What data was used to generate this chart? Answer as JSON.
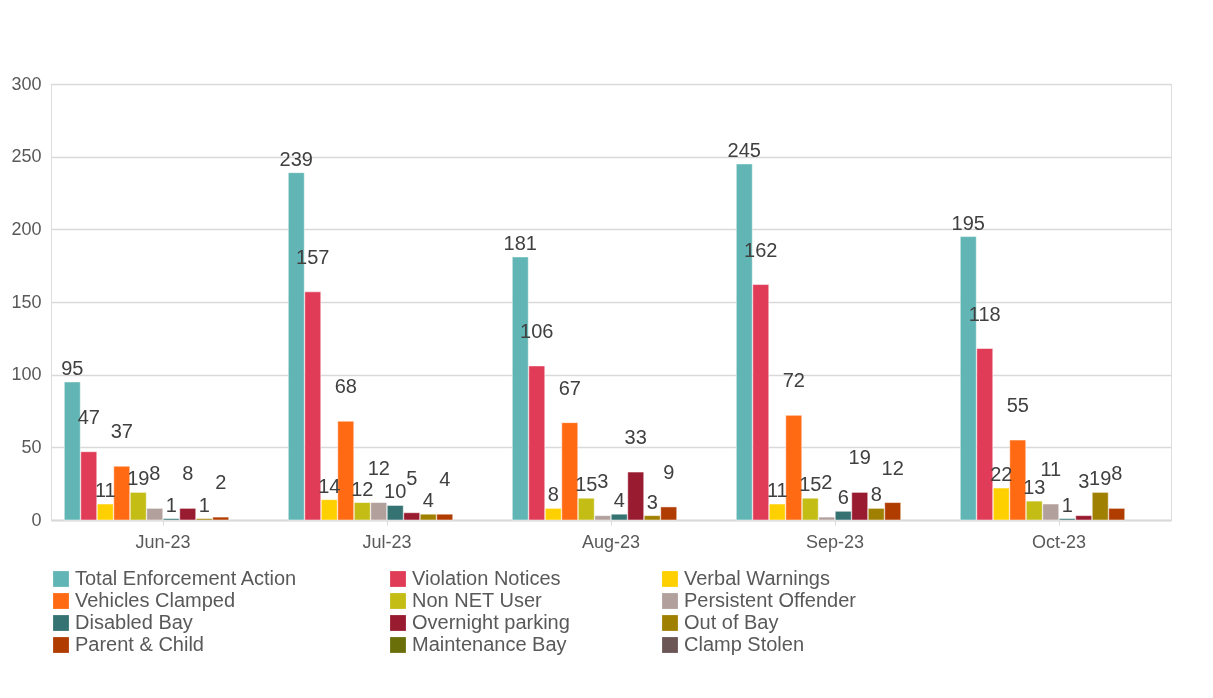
{
  "chart_data": {
    "type": "bar",
    "categories": [
      "Jun-23",
      "Jul-23",
      "Aug-23",
      "Sep-23",
      "Oct-23"
    ],
    "series": [
      {
        "name": "Total Enforcement Action",
        "color": "#62b5b5",
        "values": [
          95,
          239,
          181,
          245,
          195
        ]
      },
      {
        "name": "Violation Notices",
        "color": "#e03c58",
        "values": [
          47,
          157,
          106,
          162,
          118
        ]
      },
      {
        "name": "Verbal Warnings",
        "color": "#ffd000",
        "values": [
          11,
          14,
          8,
          11,
          22
        ]
      },
      {
        "name": "Vehicles Clamped",
        "color": "#ff6a13",
        "values": [
          37,
          68,
          67,
          72,
          55
        ]
      },
      {
        "name": "Non NET User",
        "color": "#c3bd16",
        "values": [
          19,
          12,
          15,
          15,
          13
        ]
      },
      {
        "name": "Persistent Offender",
        "color": "#b1a09c",
        "values": [
          8,
          12,
          3,
          2,
          11
        ]
      },
      {
        "name": "Disabled Bay",
        "color": "#357272",
        "values": [
          1,
          10,
          4,
          6,
          1
        ]
      },
      {
        "name": "Overnight parking",
        "color": "#981b30",
        "values": [
          8,
          5,
          33,
          19,
          3
        ]
      },
      {
        "name": "Out of Bay",
        "color": "#a08000",
        "values": [
          1,
          4,
          3,
          8,
          19
        ]
      },
      {
        "name": "Parent & Child",
        "color": "#b03c00",
        "values": [
          2,
          4,
          9,
          12,
          8
        ]
      },
      {
        "name": "Maintenance Bay",
        "color": "#6b6f0a",
        "values": [
          null,
          null,
          null,
          null,
          null
        ]
      },
      {
        "name": "Clamp Stolen",
        "color": "#6b5555",
        "values": [
          null,
          null,
          null,
          null,
          null
        ]
      }
    ],
    "ylim": [
      0,
      300
    ],
    "yticks": [
      0,
      50,
      100,
      150,
      200,
      250,
      300
    ],
    "grid": "y",
    "legend": "bottom",
    "data_labels": true
  }
}
